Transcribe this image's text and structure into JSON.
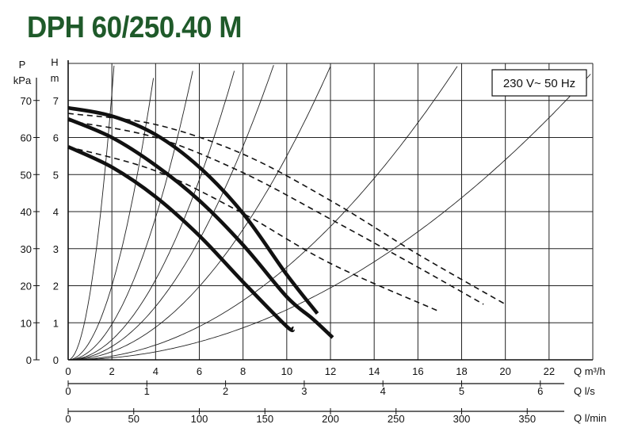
{
  "chart_data": {
    "type": "line",
    "title": "DPH 60/250.40 M",
    "voltage_label": "230 V~ 50 Hz",
    "x_axis": {
      "unit_label": "Q m³/h",
      "range": [
        0,
        24
      ],
      "ticks": [
        "0",
        "2",
        "4",
        "6",
        "8",
        "10",
        "12",
        "14",
        "16",
        "18",
        "20",
        "22"
      ]
    },
    "secondary_axes": [
      {
        "unit_label": "Q l/s",
        "ticks": [
          "0",
          "1",
          "2",
          "3",
          "4",
          "5",
          "6"
        ],
        "values": [
          0,
          1,
          2,
          3,
          4,
          5,
          6
        ]
      },
      {
        "unit_label": "Q l/min",
        "ticks": [
          "0",
          "50",
          "100",
          "150",
          "200",
          "250",
          "300",
          "350"
        ],
        "values": [
          0,
          50,
          100,
          150,
          200,
          250,
          300,
          350
        ]
      }
    ],
    "y_axis_head": {
      "letter": "H",
      "unit": "m",
      "range": [
        0,
        8
      ],
      "ticks": [
        "0",
        "1",
        "2",
        "3",
        "4",
        "5",
        "6",
        "7"
      ]
    },
    "y_axis_pressure": {
      "letter": "P",
      "unit": "kPa",
      "range": [
        0,
        80
      ],
      "ticks": [
        "0",
        "10",
        "20",
        "30",
        "40",
        "50",
        "60",
        "70"
      ]
    },
    "grid": true,
    "series": [
      {
        "style": "solid",
        "x": [
          0,
          2,
          4,
          6,
          8,
          10,
          11.4
        ],
        "y": [
          6.8,
          6.58,
          6.08,
          5.2,
          3.95,
          2.3,
          1.25
        ]
      },
      {
        "style": "solid",
        "x": [
          0,
          2,
          4,
          6,
          8,
          10,
          11.2,
          12.1
        ],
        "y": [
          6.5,
          6.0,
          5.25,
          4.3,
          3.1,
          1.7,
          1.1,
          0.6
        ]
      },
      {
        "style": "solid",
        "x": [
          0,
          2,
          4,
          6,
          8,
          10,
          10.3
        ],
        "y": [
          5.75,
          5.2,
          4.4,
          3.35,
          2.1,
          0.9,
          0.85
        ]
      },
      {
        "style": "dashed",
        "x": [
          0,
          4,
          8,
          12,
          16,
          20
        ],
        "y": [
          6.65,
          6.35,
          5.55,
          4.3,
          2.85,
          1.5
        ]
      },
      {
        "style": "dashed",
        "x": [
          0,
          4,
          8,
          12,
          16,
          19
        ],
        "y": [
          6.45,
          6.0,
          5.05,
          3.8,
          2.5,
          1.5
        ]
      },
      {
        "style": "dashed",
        "x": [
          0,
          4,
          8,
          12,
          17
        ],
        "y": [
          5.75,
          5.1,
          3.95,
          2.6,
          1.3
        ]
      }
    ],
    "system_curves_k": [
      1.8,
      0.5,
      0.24,
      0.135,
      0.09,
      0.055,
      0.025,
      0.0135
    ]
  }
}
